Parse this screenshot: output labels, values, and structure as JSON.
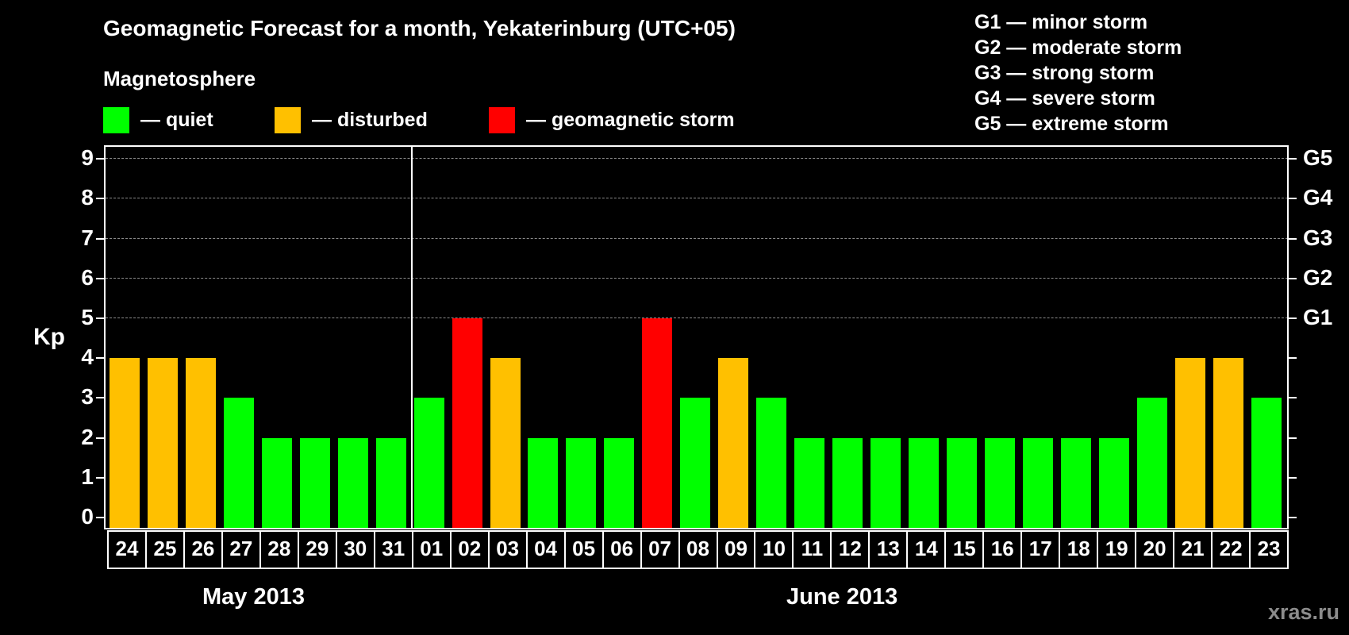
{
  "header": {
    "title": "Geomagnetic Forecast for a month, Yekaterinburg (UTC+05)",
    "subtitle": "Magnetosphere"
  },
  "legend": [
    {
      "label": "— quiet",
      "color": "#00ff00"
    },
    {
      "label": "— disturbed",
      "color": "#ffc000"
    },
    {
      "label": "— geomagnetic storm",
      "color": "#ff0000"
    }
  ],
  "g_scale_legend": [
    "G1 — minor storm",
    "G2 — moderate storm",
    "G3 — strong storm",
    "G4 — severe storm",
    "G5 — extreme storm"
  ],
  "axis": {
    "ylabel": "Kp",
    "yticks": [
      "0",
      "1",
      "2",
      "3",
      "4",
      "5",
      "6",
      "7",
      "8",
      "9"
    ],
    "right_ticks": [
      {
        "kp": 5,
        "label": "G1"
      },
      {
        "kp": 6,
        "label": "G2"
      },
      {
        "kp": 7,
        "label": "G3"
      },
      {
        "kp": 8,
        "label": "G4"
      },
      {
        "kp": 9,
        "label": "G5"
      }
    ]
  },
  "months": [
    "May 2013",
    "June 2013"
  ],
  "watermark": "xras.ru",
  "colors": {
    "quiet": "#00ff00",
    "disturbed": "#ffc000",
    "storm": "#ff0000",
    "background": "#000000",
    "grid": "#8a8a8a"
  },
  "chart_data": {
    "type": "bar",
    "title": "Geomagnetic Forecast for a month, Yekaterinburg (UTC+05)",
    "subtitle": "Magnetosphere",
    "xlabel": "May 2013 / June 2013",
    "ylabel": "Kp",
    "ylim": [
      0,
      9
    ],
    "grid": true,
    "legend_position": "top",
    "categories": [
      "24",
      "25",
      "26",
      "27",
      "28",
      "29",
      "30",
      "31",
      "01",
      "02",
      "03",
      "04",
      "05",
      "06",
      "07",
      "08",
      "09",
      "10",
      "11",
      "12",
      "13",
      "14",
      "15",
      "16",
      "17",
      "18",
      "19",
      "20",
      "21",
      "22",
      "23"
    ],
    "values": [
      4,
      4,
      4,
      3,
      2,
      2,
      2,
      2,
      3,
      5,
      4,
      2,
      2,
      2,
      5,
      3,
      4,
      3,
      2,
      2,
      2,
      2,
      2,
      2,
      2,
      2,
      2,
      3,
      4,
      4,
      3
    ],
    "status": [
      "disturbed",
      "disturbed",
      "disturbed",
      "quiet",
      "quiet",
      "quiet",
      "quiet",
      "quiet",
      "quiet",
      "storm",
      "disturbed",
      "quiet",
      "quiet",
      "quiet",
      "storm",
      "quiet",
      "disturbed",
      "quiet",
      "quiet",
      "quiet",
      "quiet",
      "quiet",
      "quiet",
      "quiet",
      "quiet",
      "quiet",
      "quiet",
      "quiet",
      "disturbed",
      "disturbed",
      "quiet"
    ],
    "secondary_axis_labels": {
      "5": "G1",
      "6": "G2",
      "7": "G3",
      "8": "G4",
      "9": "G5"
    }
  }
}
